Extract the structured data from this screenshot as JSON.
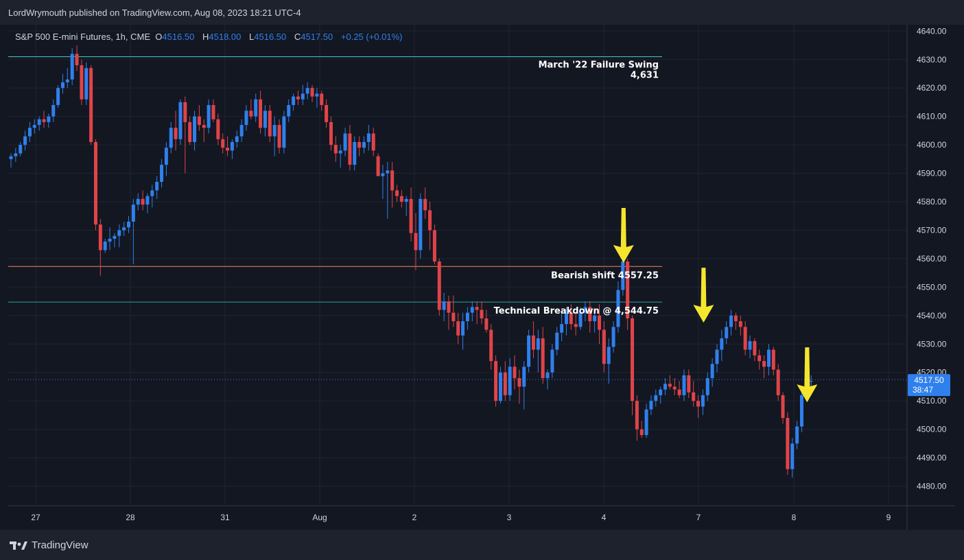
{
  "header": {
    "publisher": "LordWrymouth published on TradingView.com, Aug 08, 2023 18:21 UTC-4"
  },
  "legend": {
    "symbol": "S&P 500 E-mini Futures, 1h, CME",
    "open_label": "O",
    "open": "4516.50",
    "high_label": "H",
    "high": "4518.00",
    "low_label": "L",
    "low": "4516.50",
    "close_label": "C",
    "close": "4517.50",
    "change": "+0.25 (+0.01%)"
  },
  "footer": {
    "brand": "TradingView"
  },
  "colors": {
    "bull": "#2f80ed",
    "bear": "#e04448",
    "arrow": "#f5e62d",
    "bg": "#131722"
  },
  "chart_data": {
    "type": "candlestick",
    "ylim": [
      4475,
      4645
    ],
    "y_ticks": [
      "4640.00",
      "4630.00",
      "4620.00",
      "4610.00",
      "4600.00",
      "4590.00",
      "4580.00",
      "4570.00",
      "4560.00",
      "4550.00",
      "4540.00",
      "4530.00",
      "4520.00",
      "4510.00",
      "4500.00",
      "4490.00",
      "4480.00"
    ],
    "x_ticks": [
      "27",
      "28",
      "31",
      "Aug",
      "2",
      "3",
      "4",
      "7",
      "8",
      "9"
    ],
    "last_price": {
      "value": 4517.5,
      "label": "4517.50",
      "countdown": "38:47"
    },
    "levels": [
      {
        "value": 4631,
        "color": "#4dd0c8",
        "text": "March '22 Failure Swing",
        "text2": "4,631"
      },
      {
        "value": 4557.25,
        "color": "#f4845f",
        "text": "Bearish shift 4557.25",
        "text2": ""
      },
      {
        "value": 4544.75,
        "color": "#26a69a",
        "text": "Technical Breakdown @ 4,544.75",
        "text2": ""
      }
    ],
    "arrow_targets": [
      {
        "bar": 130,
        "value": 4559
      },
      {
        "bar": 147,
        "value": 4538
      },
      {
        "bar": 169,
        "value": 4510
      }
    ],
    "ohlc": [
      [
        4595,
        4597,
        4592,
        4596
      ],
      [
        4596,
        4599,
        4594,
        4597
      ],
      [
        4597,
        4601,
        4596,
        4600
      ],
      [
        4600,
        4605,
        4598,
        4603
      ],
      [
        4603,
        4608,
        4601,
        4606
      ],
      [
        4606,
        4609,
        4604,
        4607
      ],
      [
        4607,
        4610,
        4605,
        4609
      ],
      [
        4609,
        4612,
        4606,
        4608
      ],
      [
        4608,
        4611,
        4606,
        4610
      ],
      [
        4610,
        4616,
        4608,
        4614
      ],
      [
        4614,
        4621,
        4613,
        4620
      ],
      [
        4620,
        4625,
        4618,
        4622
      ],
      [
        4622,
        4627,
        4620,
        4623
      ],
      [
        4623,
        4634,
        4621,
        4632
      ],
      [
        4632,
        4635,
        4626,
        4628
      ],
      [
        4628,
        4630,
        4614,
        4616
      ],
      [
        4616,
        4629,
        4614,
        4627
      ],
      [
        4627,
        4628,
        4600,
        4601
      ],
      [
        4601,
        4602,
        4570,
        4572
      ],
      [
        4572,
        4574,
        4554,
        4563
      ],
      [
        4563,
        4567,
        4562,
        4566
      ],
      [
        4566,
        4571,
        4563,
        4567
      ],
      [
        4567,
        4569,
        4564,
        4568
      ],
      [
        4568,
        4572,
        4564,
        4570
      ],
      [
        4570,
        4573,
        4568,
        4571
      ],
      [
        4571,
        4575,
        4569,
        4573
      ],
      [
        4573,
        4581,
        4558,
        4579
      ],
      [
        4579,
        4583,
        4577,
        4581
      ],
      [
        4581,
        4584,
        4577,
        4579
      ],
      [
        4579,
        4583,
        4576,
        4582
      ],
      [
        4582,
        4586,
        4578,
        4584
      ],
      [
        4584,
        4589,
        4581,
        4587
      ],
      [
        4587,
        4595,
        4585,
        4593
      ],
      [
        4593,
        4601,
        4589,
        4599
      ],
      [
        4599,
        4608,
        4597,
        4606
      ],
      [
        4606,
        4612,
        4598,
        4602
      ],
      [
        4602,
        4616,
        4600,
        4615
      ],
      [
        4615,
        4617,
        4590,
        4608
      ],
      [
        4608,
        4610,
        4600,
        4601
      ],
      [
        4601,
        4612,
        4598,
        4610
      ],
      [
        4610,
        4614,
        4605,
        4607
      ],
      [
        4607,
        4609,
        4601,
        4606
      ],
      [
        4606,
        4616,
        4604,
        4614
      ],
      [
        4614,
        4616,
        4608,
        4609
      ],
      [
        4609,
        4611,
        4600,
        4602
      ],
      [
        4602,
        4604,
        4597,
        4599
      ],
      [
        4599,
        4603,
        4596,
        4598
      ],
      [
        4598,
        4602,
        4595,
        4601
      ],
      [
        4601,
        4605,
        4599,
        4603
      ],
      [
        4603,
        4609,
        4601,
        4607
      ],
      [
        4607,
        4614,
        4605,
        4612
      ],
      [
        4612,
        4616,
        4609,
        4610
      ],
      [
        4610,
        4618,
        4608,
        4616
      ],
      [
        4616,
        4619,
        4604,
        4606
      ],
      [
        4606,
        4614,
        4603,
        4612
      ],
      [
        4612,
        4614,
        4601,
        4603
      ],
      [
        4603,
        4610,
        4596,
        4607
      ],
      [
        4607,
        4609,
        4597,
        4599
      ],
      [
        4599,
        4612,
        4597,
        4610
      ],
      [
        4610,
        4616,
        4608,
        4614
      ],
      [
        4614,
        4618,
        4612,
        4617
      ],
      [
        4617,
        4619,
        4614,
        4616
      ],
      [
        4616,
        4621,
        4614,
        4618
      ],
      [
        4618,
        4622,
        4616,
        4620
      ],
      [
        4620,
        4621,
        4615,
        4617
      ],
      [
        4617,
        4620,
        4613,
        4618
      ],
      [
        4618,
        4619,
        4612,
        4614
      ],
      [
        4614,
        4616,
        4606,
        4608
      ],
      [
        4608,
        4610,
        4598,
        4600
      ],
      [
        4600,
        4603,
        4594,
        4597
      ],
      [
        4597,
        4600,
        4592,
        4598
      ],
      [
        4598,
        4606,
        4596,
        4604
      ],
      [
        4604,
        4607,
        4591,
        4593
      ],
      [
        4593,
        4603,
        4591,
        4601
      ],
      [
        4601,
        4603,
        4596,
        4599
      ],
      [
        4599,
        4603,
        4597,
        4601
      ],
      [
        4601,
        4607,
        4598,
        4604
      ],
      [
        4604,
        4606,
        4596,
        4598
      ],
      [
        4596,
        4597,
        4590,
        4589
      ],
      [
        4589,
        4593,
        4581,
        4590
      ],
      [
        4590,
        4594,
        4574,
        4591
      ],
      [
        4591,
        4594,
        4578,
        4584
      ],
      [
        4584,
        4586,
        4580,
        4582
      ],
      [
        4582,
        4584,
        4578,
        4580
      ],
      [
        4580,
        4582,
        4575,
        4581
      ],
      [
        4581,
        4585,
        4566,
        4569
      ],
      [
        4569,
        4576,
        4556,
        4563
      ],
      [
        4563,
        4583,
        4560,
        4581
      ],
      [
        4581,
        4585,
        4574,
        4577
      ],
      [
        4577,
        4580,
        4563,
        4570
      ],
      [
        4570,
        4572,
        4558,
        4559
      ],
      [
        4559,
        4560,
        4540,
        4542
      ],
      [
        4542,
        4548,
        4538,
        4545
      ],
      [
        4545,
        4547,
        4535,
        4541
      ],
      [
        4541,
        4547,
        4536,
        4538
      ],
      [
        4538,
        4541,
        4530,
        4533
      ],
      [
        4533,
        4541,
        4528,
        4538
      ],
      [
        4538,
        4543,
        4535,
        4541
      ],
      [
        4541,
        4545,
        4538,
        4543
      ],
      [
        4543,
        4545,
        4537,
        4542
      ],
      [
        4542,
        4545,
        4537,
        4539
      ],
      [
        4539,
        4542,
        4534,
        4535
      ],
      [
        4535,
        4537,
        4521,
        4524
      ],
      [
        4524,
        4526,
        4508,
        4510
      ],
      [
        4510,
        4522,
        4509,
        4520
      ],
      [
        4520,
        4524,
        4510,
        4512
      ],
      [
        4512,
        4525,
        4510,
        4522
      ],
      [
        4522,
        4526,
        4514,
        4518
      ],
      [
        4518,
        4521,
        4509,
        4515
      ],
      [
        4515,
        4524,
        4507,
        4522
      ],
      [
        4522,
        4535,
        4520,
        4533
      ],
      [
        4533,
        4538,
        4525,
        4528
      ],
      [
        4528,
        4535,
        4520,
        4532
      ],
      [
        4532,
        4536,
        4516,
        4518
      ],
      [
        4518,
        4521,
        4514,
        4520
      ],
      [
        4520,
        4530,
        4518,
        4528
      ],
      [
        4528,
        4536,
        4526,
        4534
      ],
      [
        4534,
        4541,
        4531,
        4537
      ],
      [
        4537,
        4543,
        4533,
        4541
      ],
      [
        4541,
        4544,
        4535,
        4537
      ],
      [
        4537,
        4541,
        4533,
        4536
      ],
      [
        4536,
        4543,
        4535,
        4541
      ],
      [
        4541,
        4545,
        4538,
        4543
      ],
      [
        4543,
        4545,
        4534,
        4538
      ],
      [
        4538,
        4542,
        4534,
        4540
      ],
      [
        4540,
        4544,
        4530,
        4535
      ],
      [
        4535,
        4538,
        4520,
        4523
      ],
      [
        4523,
        4532,
        4516,
        4529
      ],
      [
        4529,
        4538,
        4527,
        4536
      ],
      [
        4536,
        4552,
        4534,
        4549
      ],
      [
        4549,
        4561,
        4547,
        4559
      ],
      [
        4559,
        4560,
        4535,
        4539
      ],
      [
        4539,
        4540,
        4505,
        4510
      ],
      [
        4510,
        4512,
        4496,
        4500
      ],
      [
        4500,
        4503,
        4497,
        4498
      ],
      [
        4498,
        4509,
        4497,
        4507
      ],
      [
        4507,
        4512,
        4505,
        4510
      ],
      [
        4510,
        4514,
        4508,
        4512
      ],
      [
        4512,
        4515,
        4509,
        4514
      ],
      [
        4514,
        4518,
        4512,
        4516
      ],
      [
        4516,
        4519,
        4514,
        4515
      ],
      [
        4515,
        4518,
        4512,
        4514
      ],
      [
        4514,
        4517,
        4511,
        4512
      ],
      [
        4512,
        4521,
        4510,
        4519
      ],
      [
        4519,
        4521,
        4511,
        4513
      ],
      [
        4513,
        4517,
        4508,
        4510
      ],
      [
        4510,
        4512,
        4504,
        4508
      ],
      [
        4508,
        4514,
        4505,
        4512
      ],
      [
        4512,
        4520,
        4510,
        4518
      ],
      [
        4518,
        4525,
        4515,
        4523
      ],
      [
        4523,
        4530,
        4520,
        4528
      ],
      [
        4528,
        4535,
        4524,
        4532
      ],
      [
        4532,
        4538,
        4530,
        4536
      ],
      [
        4536,
        4542,
        4533,
        4540
      ],
      [
        4540,
        4541,
        4535,
        4538
      ],
      [
        4538,
        4540,
        4533,
        4536
      ],
      [
        4536,
        4538,
        4526,
        4528
      ],
      [
        4528,
        4533,
        4525,
        4531
      ],
      [
        4531,
        4532,
        4524,
        4526
      ],
      [
        4526,
        4528,
        4521,
        4524
      ],
      [
        4524,
        4526,
        4518,
        4522
      ],
      [
        4522,
        4530,
        4519,
        4528
      ],
      [
        4528,
        4529,
        4519,
        4521
      ],
      [
        4521,
        4523,
        4510,
        4512
      ],
      [
        4512,
        4513,
        4502,
        4504
      ],
      [
        4504,
        4506,
        4484,
        4486
      ],
      [
        4486,
        4497,
        4483,
        4495
      ],
      [
        4495,
        4503,
        4493,
        4501
      ],
      [
        4501,
        4514,
        4499,
        4512
      ],
      [
        4512,
        4522,
        4510,
        4517
      ],
      [
        4517,
        4519,
        4515,
        4517
      ]
    ]
  }
}
